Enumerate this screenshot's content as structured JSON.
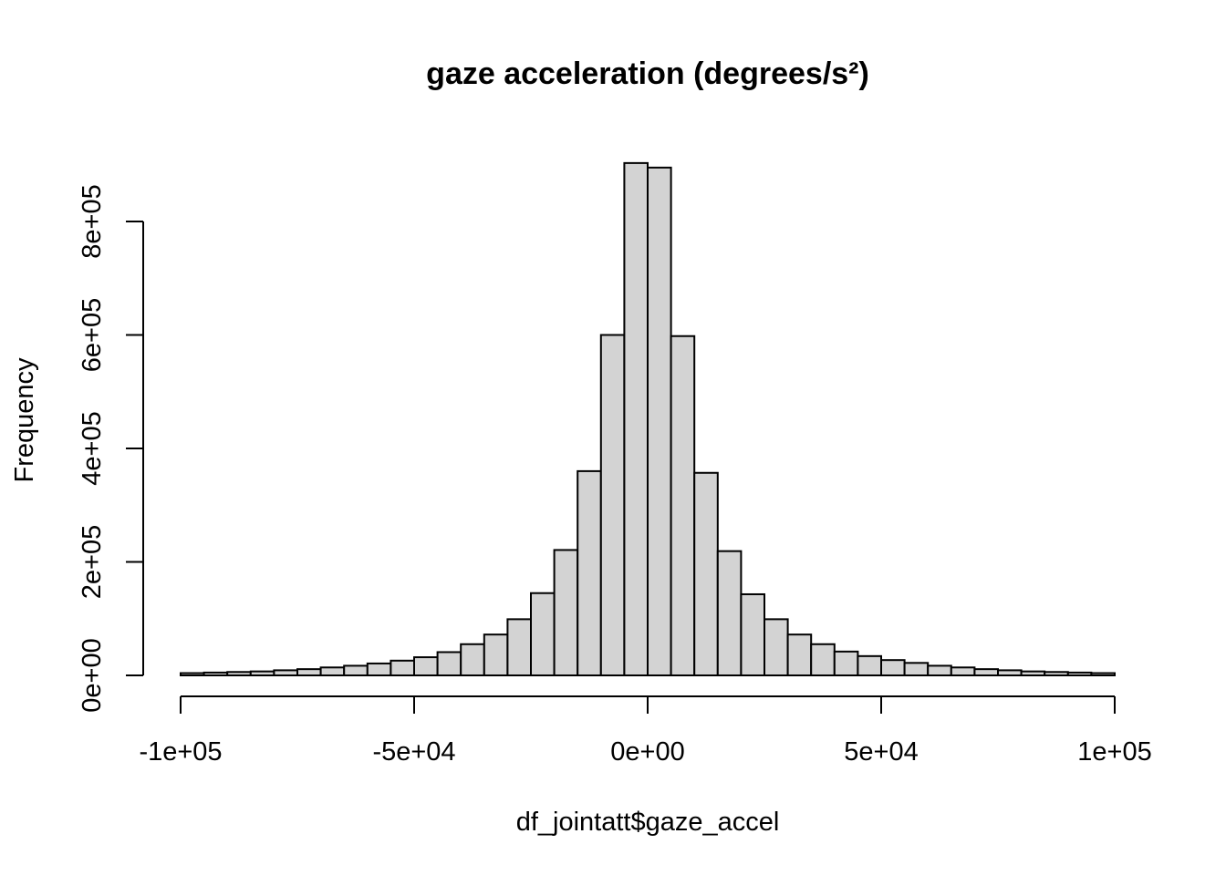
{
  "chart_data": {
    "type": "bar",
    "title": "gaze acceleration (degrees/s²)",
    "xlabel": "df_jointatt$gaze_accel",
    "ylabel": "Frequency",
    "bar_fill": "#d3d3d3",
    "bar_stroke": "#000000",
    "grid": false,
    "legend": "none",
    "xlim": [
      -100000,
      100000
    ],
    "ylim": [
      0,
      900000
    ],
    "bin_width": 5000,
    "x_ticks": [
      -100000,
      -50000,
      0,
      50000,
      100000
    ],
    "x_tick_labels": [
      "-1e+05",
      "-5e+04",
      "0e+00",
      "5e+04",
      "1e+05"
    ],
    "y_ticks": [
      0,
      200000,
      400000,
      600000,
      800000
    ],
    "y_tick_labels": [
      "0e+00",
      "2e+05",
      "4e+05",
      "6e+05",
      "8e+05"
    ],
    "bins": [
      {
        "start": -100000,
        "end": -95000,
        "count": 4000
      },
      {
        "start": -95000,
        "end": -90000,
        "count": 5000
      },
      {
        "start": -90000,
        "end": -85000,
        "count": 6000
      },
      {
        "start": -85000,
        "end": -80000,
        "count": 7000
      },
      {
        "start": -80000,
        "end": -75000,
        "count": 9000
      },
      {
        "start": -75000,
        "end": -70000,
        "count": 11000
      },
      {
        "start": -70000,
        "end": -65000,
        "count": 14000
      },
      {
        "start": -65000,
        "end": -60000,
        "count": 17000
      },
      {
        "start": -60000,
        "end": -55000,
        "count": 21000
      },
      {
        "start": -55000,
        "end": -50000,
        "count": 26000
      },
      {
        "start": -50000,
        "end": -45000,
        "count": 32000
      },
      {
        "start": -45000,
        "end": -40000,
        "count": 41000
      },
      {
        "start": -40000,
        "end": -35000,
        "count": 55000
      },
      {
        "start": -35000,
        "end": -30000,
        "count": 72000
      },
      {
        "start": -30000,
        "end": -25000,
        "count": 99000
      },
      {
        "start": -25000,
        "end": -20000,
        "count": 145000
      },
      {
        "start": -20000,
        "end": -15000,
        "count": 221000
      },
      {
        "start": -15000,
        "end": -10000,
        "count": 360000
      },
      {
        "start": -10000,
        "end": -5000,
        "count": 600000
      },
      {
        "start": -5000,
        "end": 0,
        "count": 903000
      },
      {
        "start": 0,
        "end": 5000,
        "count": 895000
      },
      {
        "start": 5000,
        "end": 10000,
        "count": 598000
      },
      {
        "start": 10000,
        "end": 15000,
        "count": 357000
      },
      {
        "start": 15000,
        "end": 20000,
        "count": 219000
      },
      {
        "start": 20000,
        "end": 25000,
        "count": 143000
      },
      {
        "start": 25000,
        "end": 30000,
        "count": 99000
      },
      {
        "start": 30000,
        "end": 35000,
        "count": 72000
      },
      {
        "start": 35000,
        "end": 40000,
        "count": 55000
      },
      {
        "start": 40000,
        "end": 45000,
        "count": 42000
      },
      {
        "start": 45000,
        "end": 50000,
        "count": 34000
      },
      {
        "start": 50000,
        "end": 55000,
        "count": 27000
      },
      {
        "start": 55000,
        "end": 60000,
        "count": 22000
      },
      {
        "start": 60000,
        "end": 65000,
        "count": 17000
      },
      {
        "start": 65000,
        "end": 70000,
        "count": 14000
      },
      {
        "start": 70000,
        "end": 75000,
        "count": 11000
      },
      {
        "start": 75000,
        "end": 80000,
        "count": 9000
      },
      {
        "start": 80000,
        "end": 85000,
        "count": 7000
      },
      {
        "start": 85000,
        "end": 90000,
        "count": 6000
      },
      {
        "start": 90000,
        "end": 95000,
        "count": 5000
      },
      {
        "start": 95000,
        "end": 100000,
        "count": 4000
      }
    ]
  }
}
